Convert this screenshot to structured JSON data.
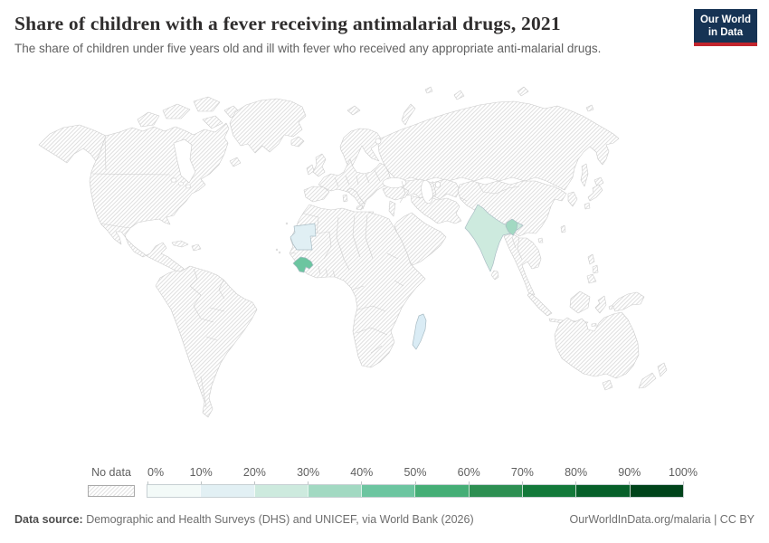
{
  "header": {
    "title": "Share of children with a fever receiving antimalarial drugs, 2021",
    "subtitle": "The share of children under five years old and ill with fever who received any appropriate anti-malarial drugs."
  },
  "logo": {
    "line1": "Our World",
    "line2": "in Data",
    "bg_color": "#163354",
    "accent_color": "#c2252d"
  },
  "legend": {
    "no_data_label": "No data",
    "tick_labels": [
      "0%",
      "10%",
      "20%",
      "30%",
      "40%",
      "50%",
      "60%",
      "70%",
      "80%",
      "90%",
      "100%"
    ],
    "bin_colors": [
      "#f3faf8",
      "#e2f0f4",
      "#cdeade",
      "#a2d9c2",
      "#6cc5a0",
      "#45ae76",
      "#2d8f52",
      "#13793a",
      "#07602a",
      "#00441b"
    ]
  },
  "map": {
    "border_color": "#cbcbcb",
    "hatch_line_color": "#e0e0e0",
    "countries": [
      {
        "id": "mauritania",
        "name": "Mauritania",
        "value_bin": "10-20%",
        "color": "#e0eff4"
      },
      {
        "id": "guinea",
        "name": "Guinea",
        "value_bin": "40-50%",
        "color": "#6cc5a0"
      },
      {
        "id": "india",
        "name": "India",
        "value_bin": "20-30%",
        "color": "#cdeade"
      },
      {
        "id": "bangladesh",
        "name": "Bangladesh",
        "value_bin": "30-40%",
        "color": "#a2d9c2"
      },
      {
        "id": "madagascar",
        "name": "Madagascar",
        "value_bin": "10-20%",
        "color": "#daecf5"
      }
    ]
  },
  "chart_data": {
    "type": "choropleth_map",
    "title": "Share of children with a fever receiving antimalarial drugs, 2021",
    "unit": "%",
    "year": "2021",
    "legend_bins": [
      "0%",
      "10%",
      "20%",
      "30%",
      "40%",
      "50%",
      "60%",
      "70%",
      "80%",
      "90%",
      "100%"
    ],
    "values": [
      {
        "entity": "Mauritania",
        "bin": "10-20%"
      },
      {
        "entity": "Guinea",
        "bin": "40-50%"
      },
      {
        "entity": "India",
        "bin": "20-30%"
      },
      {
        "entity": "Bangladesh",
        "bin": "30-40%"
      },
      {
        "entity": "Madagascar",
        "bin": "10-20%"
      },
      {
        "entity": "All other countries",
        "bin": "No data"
      }
    ]
  },
  "footer": {
    "source_label": "Data source:",
    "source_text": " Demographic and Health Surveys (DHS) and UNICEF, via World Bank (2026)",
    "right_text": "OurWorldInData.org/malaria | CC BY"
  }
}
